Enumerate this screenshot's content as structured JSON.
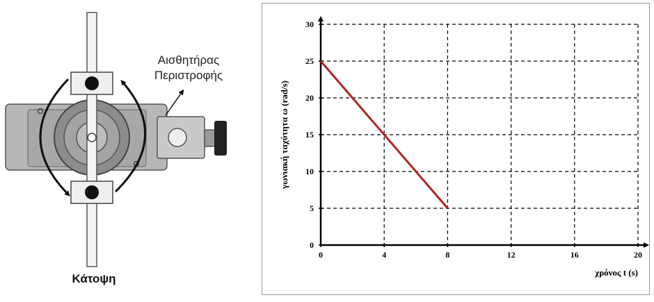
{
  "figure": {
    "sensor_label_lines": [
      "Αισθητήρας",
      "Περιστροφής"
    ],
    "caption": "Κάτοψη"
  },
  "chart_data": {
    "type": "line",
    "xlabel": "χρόνος  t (s)",
    "ylabel": "γωνιακή ταχύτητα  ω (rad/s)",
    "xlim": [
      0,
      20
    ],
    "ylim": [
      0,
      30
    ],
    "xticks": [
      0,
      4,
      8,
      12,
      16,
      20
    ],
    "yticks": [
      0,
      5,
      10,
      15,
      20,
      25,
      30
    ],
    "grid": true,
    "grid_style": "dashed",
    "series": [
      {
        "x": [
          0,
          8
        ],
        "y": [
          25,
          5
        ],
        "color": "#b22222"
      }
    ]
  }
}
